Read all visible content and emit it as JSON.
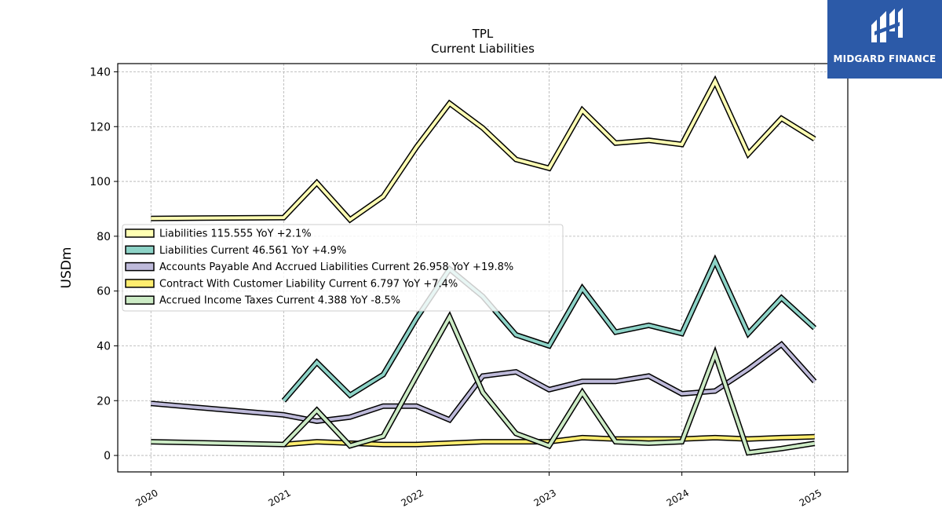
{
  "logo": {
    "text": "MIDGARD FINANCE",
    "color": "#2c5aa8"
  },
  "chart_data": {
    "type": "line",
    "title": "TPL",
    "subtitle": "Current  Liabilities",
    "ylabel": "USDm",
    "ylim": [
      -6,
      143
    ],
    "yticks": [
      0,
      20,
      40,
      60,
      80,
      100,
      120,
      140
    ],
    "xlim": [
      2019.75,
      2025.25
    ],
    "xticks": [
      2020,
      2021,
      2022,
      2023,
      2024,
      2025
    ],
    "xtick_labels": [
      "2020",
      "2021",
      "2022",
      "2023",
      "2024",
      "2025"
    ],
    "grid": true,
    "legend_position": "center-left",
    "series": [
      {
        "name": "Liabilities  115.555 YoY +2.1%",
        "color": "#ffffb3",
        "x": [
          2020.0,
          2021.0,
          2021.25,
          2021.5,
          2021.75,
          2022.0,
          2022.25,
          2022.5,
          2022.75,
          2023.0,
          2023.25,
          2023.5,
          2023.75,
          2024.0,
          2024.25,
          2024.5,
          2024.75,
          2025.0
        ],
        "y": [
          86.5,
          86.8,
          99.5,
          86.0,
          94.5,
          112.5,
          128.5,
          119.5,
          108.0,
          104.8,
          126.0,
          114.0,
          115.0,
          113.5,
          136.5,
          110.0,
          123.0,
          115.5
        ]
      },
      {
        "name": "Liabilities Current  46.561 YoY +4.9%",
        "color": "#8dd3c7",
        "x": [
          2021.0,
          2021.25,
          2021.5,
          2021.75,
          2022.0,
          2022.25,
          2022.5,
          2022.75,
          2023.0,
          2023.25,
          2023.5,
          2023.75,
          2024.0,
          2024.25,
          2024.5,
          2024.75,
          2025.0
        ],
        "y": [
          20.0,
          34.0,
          22.0,
          29.5,
          50.0,
          68.0,
          58.0,
          44.0,
          40.0,
          61.0,
          45.0,
          47.5,
          44.5,
          71.0,
          44.5,
          57.5,
          46.5
        ]
      },
      {
        "name": "Accounts Payable And Accrued Liabilities Current  26.958 YoY +19.8%",
        "color": "#bebada",
        "x": [
          2020.0,
          2021.0,
          2021.25,
          2021.5,
          2021.75,
          2022.0,
          2022.25,
          2022.5,
          2022.75,
          2023.0,
          2023.25,
          2023.5,
          2023.75,
          2024.0,
          2024.25,
          2024.5,
          2024.75,
          2025.0
        ],
        "y": [
          19.0,
          14.8,
          12.5,
          14.0,
          18.0,
          18.0,
          13.0,
          29.0,
          30.5,
          24.0,
          27.0,
          27.0,
          29.0,
          22.5,
          23.5,
          31.5,
          40.5,
          27.0
        ]
      },
      {
        "name": "Contract With Customer Liability Current  6.797 YoY +7.4%",
        "color": "#ffed6f",
        "x": [
          2021.0,
          2021.25,
          2021.5,
          2021.75,
          2022.0,
          2022.25,
          2022.5,
          2022.75,
          2023.0,
          2023.25,
          2023.5,
          2023.75,
          2024.0,
          2024.25,
          2024.5,
          2024.75,
          2025.0
        ],
        "y": [
          4.0,
          5.0,
          4.5,
          4.0,
          4.0,
          4.5,
          5.0,
          5.0,
          5.0,
          6.5,
          6.0,
          6.0,
          6.0,
          6.5,
          6.0,
          6.5,
          6.8
        ]
      },
      {
        "name": "Accrued Income Taxes Current  4.388 YoY -8.5%",
        "color": "#ccebc5",
        "x": [
          2020.0,
          2021.0,
          2021.25,
          2021.5,
          2021.75,
          2022.0,
          2022.25,
          2022.5,
          2022.75,
          2023.0,
          2023.25,
          2023.5,
          2023.75,
          2024.0,
          2024.25,
          2024.5,
          2024.75,
          2025.0
        ],
        "y": [
          5.0,
          4.0,
          16.5,
          3.5,
          7.0,
          29.0,
          50.5,
          23.0,
          8.0,
          3.5,
          23.0,
          5.0,
          4.5,
          5.0,
          37.0,
          1.0,
          2.5,
          4.4
        ]
      }
    ]
  }
}
